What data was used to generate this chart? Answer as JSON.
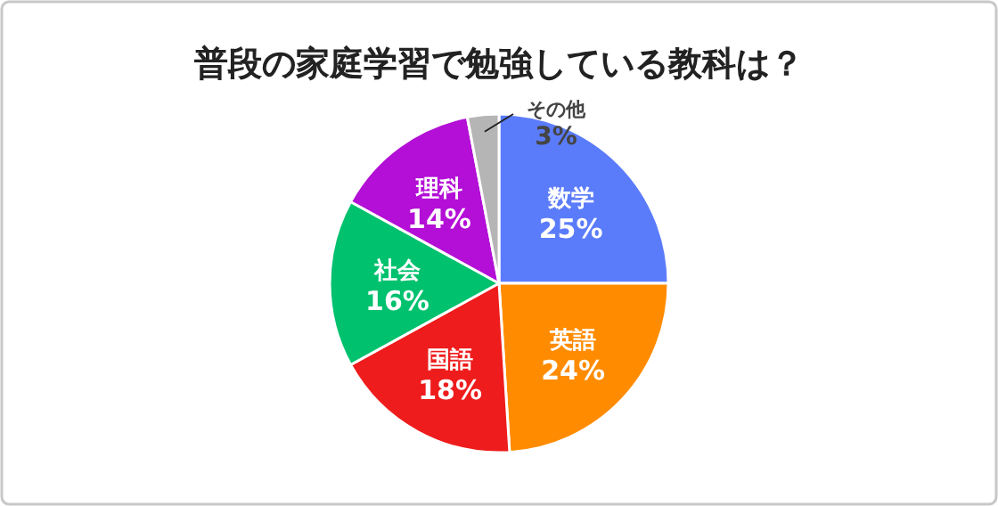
{
  "chart_data": {
    "type": "pie",
    "title": "普段の家庭学習で勉強している教科は？",
    "categories": [
      "数学",
      "英語",
      "国語",
      "社会",
      "理科",
      "その他"
    ],
    "values": [
      25,
      24,
      18,
      16,
      14,
      3
    ],
    "value_labels": [
      "25%",
      "24%",
      "18%",
      "16%",
      "14%",
      "3%"
    ],
    "colors": [
      "#5b7cfa",
      "#ff8c00",
      "#ee1c1c",
      "#00c16e",
      "#b30fd6",
      "#b5b5b5"
    ]
  }
}
